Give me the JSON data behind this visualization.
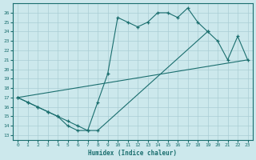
{
  "xlabel": "Humidex (Indice chaleur)",
  "background_color": "#cce8ec",
  "line_color": "#1a6e6e",
  "grid_color": "#aacdd4",
  "xlim": [
    -0.5,
    23.5
  ],
  "ylim": [
    12.5,
    27.0
  ],
  "yticks": [
    13,
    14,
    15,
    16,
    17,
    18,
    19,
    20,
    21,
    22,
    23,
    24,
    25,
    26
  ],
  "xticks": [
    0,
    1,
    2,
    3,
    4,
    5,
    6,
    7,
    8,
    9,
    10,
    11,
    12,
    13,
    14,
    15,
    16,
    17,
    18,
    19,
    20,
    21,
    22,
    23
  ],
  "line1_x": [
    0,
    1,
    2,
    3,
    4,
    5,
    6,
    7,
    8,
    9,
    10,
    11,
    12,
    13,
    14,
    15,
    16,
    17,
    18,
    19
  ],
  "line1_y": [
    17.0,
    16.5,
    16.0,
    15.5,
    15.0,
    14.0,
    13.5,
    13.5,
    16.5,
    19.5,
    25.5,
    25.0,
    24.5,
    25.0,
    26.0,
    26.0,
    25.5,
    26.5,
    25.0,
    24.0
  ],
  "line2_x": [
    0,
    23
  ],
  "line2_y": [
    17.0,
    21.0
  ],
  "line3_x": [
    0,
    1,
    2,
    3,
    4,
    5,
    6,
    7,
    8,
    19,
    20,
    21,
    22,
    23
  ],
  "line3_y": [
    17.0,
    16.5,
    16.0,
    15.5,
    15.0,
    14.5,
    14.0,
    13.5,
    13.5,
    24.0,
    23.0,
    21.0,
    23.5,
    21.0
  ]
}
